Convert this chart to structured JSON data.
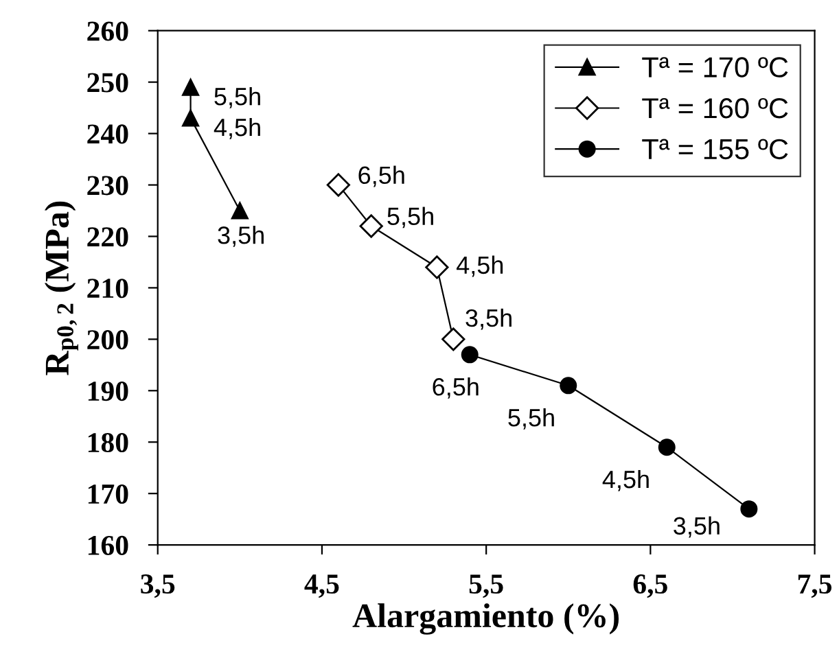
{
  "chart_data": {
    "type": "line",
    "xlabel": "Alargamiento (%)",
    "ylabel": "R$_{p0,2}$ (MPa)",
    "xlim": [
      3.5,
      7.5
    ],
    "ylim": [
      160,
      260
    ],
    "xticks": [
      {
        "value": 3.5,
        "label": "3,5"
      },
      {
        "value": 4.5,
        "label": "4,5"
      },
      {
        "value": 5.5,
        "label": "5,5"
      },
      {
        "value": 6.5,
        "label": "6,5"
      },
      {
        "value": 7.5,
        "label": "7,5"
      }
    ],
    "yticks": [
      160,
      170,
      180,
      190,
      200,
      210,
      220,
      230,
      240,
      250,
      260
    ],
    "grid": false,
    "legend": "top right",
    "series": [
      {
        "name": "Tª = 170 ºC",
        "color": "#000000",
        "marker": "triangle",
        "x": [
          3.7,
          3.7,
          4.0
        ],
        "values": [
          249,
          243,
          225
        ]
      },
      {
        "name": "Tª = 160 ºC",
        "color": "#000000",
        "marker": "diamond",
        "x": [
          4.6,
          4.8,
          5.2,
          5.3
        ],
        "values": [
          230,
          222,
          214,
          200
        ]
      },
      {
        "name": "Tª = 155 ºC",
        "color": "#000000",
        "marker": "circle",
        "x": [
          5.4,
          6.0,
          6.6,
          7.1
        ],
        "values": [
          197,
          191,
          179,
          167
        ]
      }
    ],
    "annotations": [
      {
        "text": "5,5h",
        "x": 3.7,
        "y": 249
      },
      {
        "text": "4,5h",
        "x": 3.7,
        "y": 243
      },
      {
        "text": "3,5h",
        "x": 4.0,
        "y": 225
      },
      {
        "text": "6,5h",
        "x": 4.6,
        "y": 230
      },
      {
        "text": "5,5h",
        "x": 4.8,
        "y": 222
      },
      {
        "text": "4,5h",
        "x": 5.2,
        "y": 214
      },
      {
        "text": "3,5h",
        "x": 5.3,
        "y": 200
      },
      {
        "text": "6,5h",
        "x": 5.4,
        "y": 197
      },
      {
        "text": "5,5h",
        "x": 6.0,
        "y": 191
      },
      {
        "text": "4,5h",
        "x": 6.6,
        "y": 179
      },
      {
        "text": "3,5h",
        "x": 7.1,
        "y": 167
      }
    ]
  }
}
